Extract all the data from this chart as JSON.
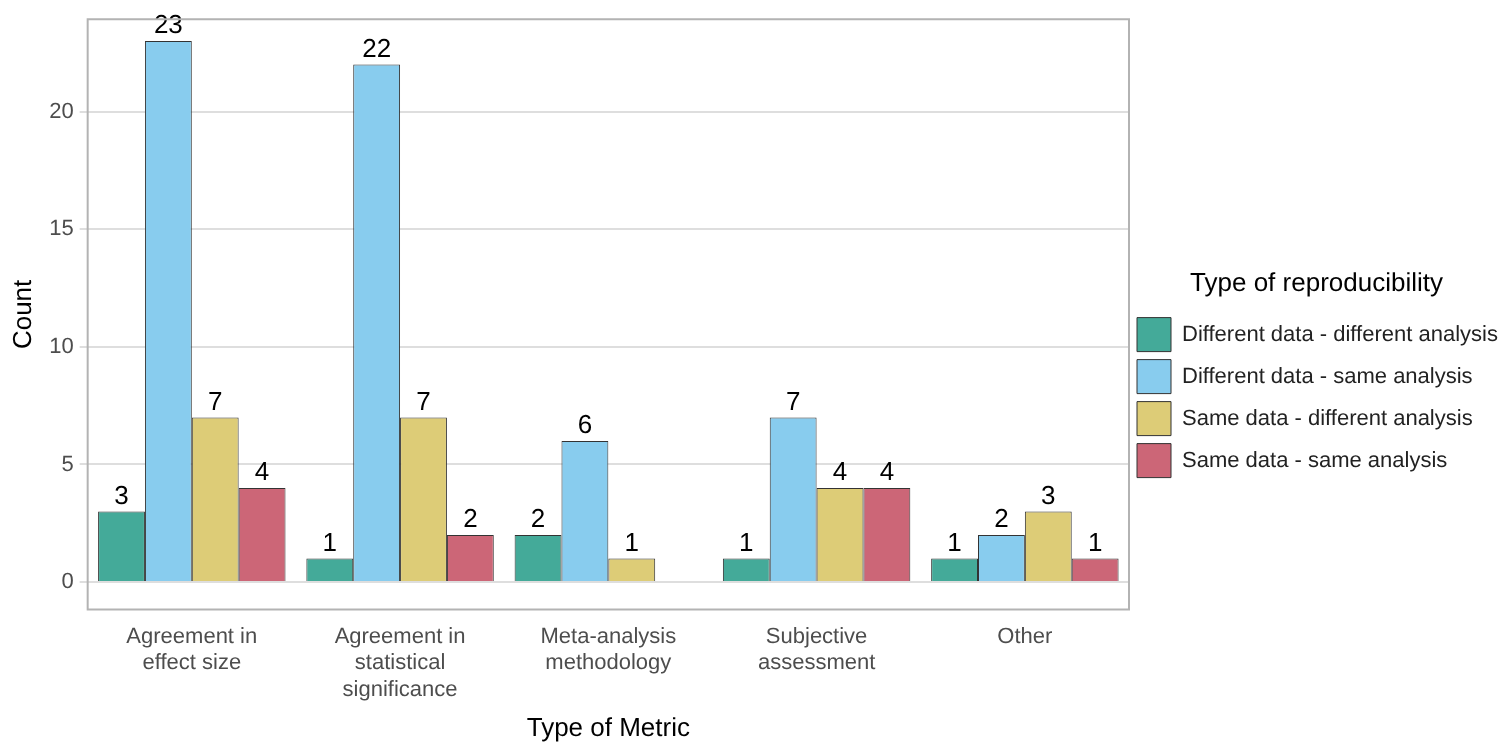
{
  "chart_data": {
    "type": "bar",
    "xlabel": "Type of Metric",
    "ylabel": "Count",
    "legend_title": "Type of reproducibility",
    "categories": [
      "Agreement in effect size",
      "Agreement in statistical significance",
      "Meta-analysis methodology",
      "Subjective assessment",
      "Other"
    ],
    "series": [
      {
        "name": "Different data - different analysis",
        "color": "#44aa99",
        "values": [
          3,
          1,
          2,
          1,
          1
        ]
      },
      {
        "name": "Different data - same analysis",
        "color": "#88ccee",
        "values": [
          23,
          22,
          6,
          7,
          2
        ]
      },
      {
        "name": "Same data - different analysis",
        "color": "#ddcc77",
        "values": [
          7,
          7,
          1,
          4,
          3
        ]
      },
      {
        "name": "Same data - same analysis",
        "color": "#cc6677",
        "values": [
          4,
          2,
          null,
          4,
          1
        ]
      }
    ],
    "ylim": [
      -1.17,
      23.93
    ],
    "yticks": [
      0,
      5,
      10,
      15,
      20
    ],
    "grid": "y",
    "legend": "right",
    "data_labels": true
  }
}
